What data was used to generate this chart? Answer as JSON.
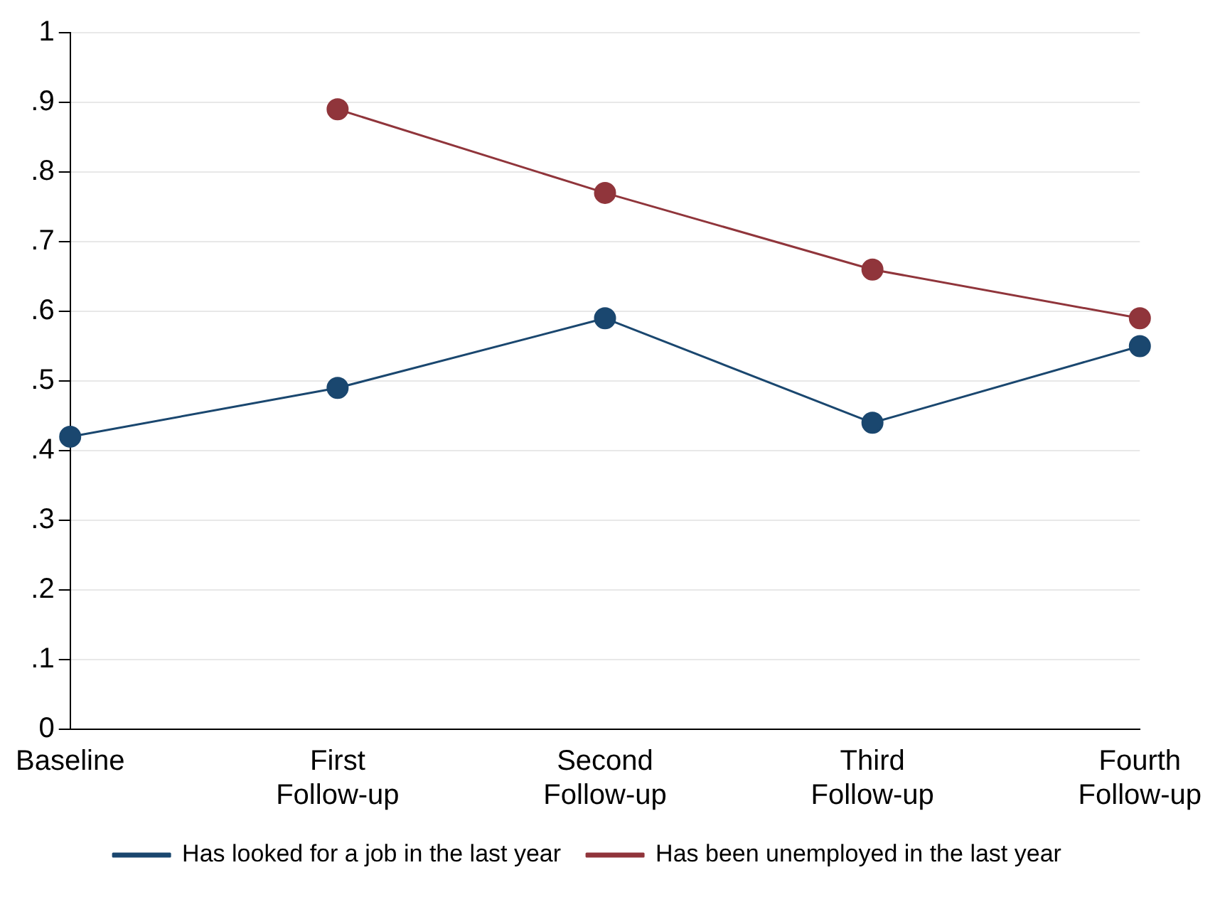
{
  "chart_data": {
    "type": "line",
    "categories": [
      "Baseline",
      "First Follow-up",
      "Second Follow-up",
      "Third Follow-up",
      "Fourth Follow-up"
    ],
    "series": [
      {
        "name": "Has looked for a job in the last year",
        "color": "#1a476f",
        "values": [
          0.42,
          0.49,
          0.59,
          0.44,
          0.55
        ]
      },
      {
        "name": "Has been unemployed in the last year",
        "color": "#90353b",
        "values": [
          null,
          0.89,
          0.77,
          0.66,
          0.59
        ]
      }
    ],
    "ylim": [
      0,
      1
    ],
    "yticks": [
      0,
      {
        "value": 0.1,
        "label": ".1"
      },
      {
        "value": 0.2,
        "label": ".2"
      },
      {
        "value": 0.3,
        "label": ".3"
      },
      {
        "value": 0.4,
        "label": ".4"
      },
      {
        "value": 0.5,
        "label": ".5"
      },
      {
        "value": 0.6,
        "label": ".6"
      },
      {
        "value": 0.7,
        "label": ".7"
      },
      {
        "value": 0.8,
        "label": ".8"
      },
      {
        "value": 0.9,
        "label": ".9"
      },
      1
    ],
    "grid": "y",
    "legend": "bottom",
    "marker": "circle",
    "line_style": "solid"
  }
}
